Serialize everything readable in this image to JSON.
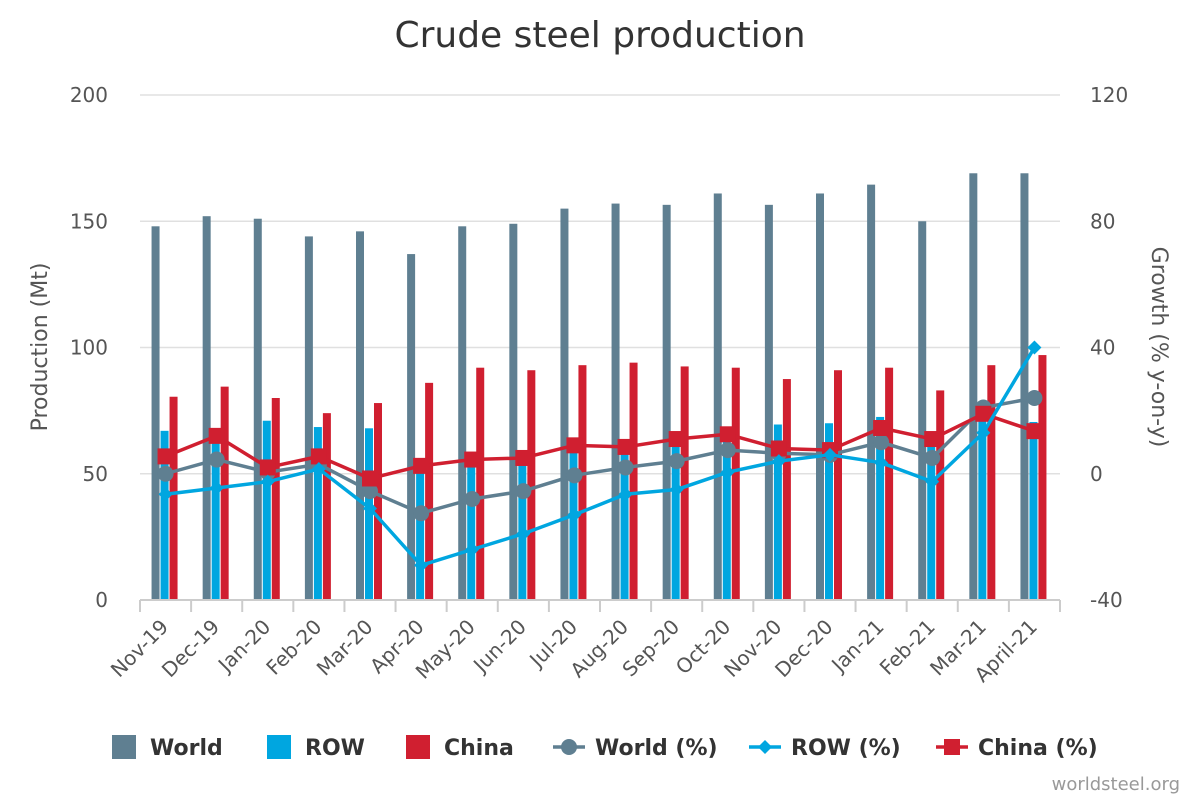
{
  "chart_data": {
    "type": "bar+line",
    "title": "Crude steel production",
    "categories": [
      "Nov-19",
      "Dec-19",
      "Jan-20",
      "Feb-20",
      "Mar-20",
      "Apr-20",
      "May-20",
      "Jun-20",
      "Jul-20",
      "Aug-20",
      "Sep-20",
      "Oct-20",
      "Nov-20",
      "Dec-20",
      "Jan-21",
      "Feb-21",
      "Mar-21",
      "April-21"
    ],
    "y_left": {
      "label": "Production (Mt)",
      "range": [
        0,
        200
      ],
      "ticks": [
        0,
        50,
        100,
        150,
        200
      ]
    },
    "y_right": {
      "label": "Growth (% y-on-y)",
      "range": [
        -40,
        120
      ],
      "ticks": [
        -40,
        0,
        40,
        80,
        120
      ]
    },
    "bar_series": [
      {
        "name": "World",
        "color": "#5f7f91",
        "values": [
          148,
          152,
          151,
          144,
          146,
          137,
          148,
          149,
          155,
          157,
          156.5,
          161,
          156.5,
          161,
          164.5,
          150,
          169,
          169
        ]
      },
      {
        "name": "ROW",
        "color": "#00a6e0",
        "values": [
          67,
          66,
          71,
          68.5,
          68,
          51,
          55,
          58,
          61,
          62,
          63,
          67,
          69.5,
          70,
          72.5,
          66,
          74,
          70.5
        ]
      },
      {
        "name": "China",
        "color": "#d01f30",
        "values": [
          80.5,
          84.5,
          80,
          74,
          78,
          86,
          92,
          91,
          93,
          94,
          92.5,
          92,
          87.5,
          91,
          92,
          83,
          93,
          97
        ]
      }
    ],
    "line_series": [
      {
        "name": "World (%)",
        "color": "#5f7f91",
        "marker": "circle",
        "values": [
          0,
          4.5,
          0.5,
          3,
          -5.5,
          -12.5,
          -8,
          -5.5,
          -0.5,
          2,
          4,
          7.5,
          6.5,
          6,
          10,
          5,
          21,
          24
        ]
      },
      {
        "name": "ROW (%)",
        "color": "#00a6e0",
        "marker": "diamond",
        "values": [
          -6.5,
          -4.5,
          -2.5,
          1.5,
          -11,
          -29,
          -24,
          -19,
          -13,
          -6.5,
          -5,
          0.5,
          4,
          6,
          3.5,
          -2.5,
          13,
          40
        ]
      },
      {
        "name": "China (%)",
        "color": "#d01f30",
        "marker": "square",
        "values": [
          5.5,
          12,
          2,
          5.5,
          -1.5,
          2.5,
          4.5,
          5,
          9,
          8.5,
          11,
          12.5,
          8,
          7.5,
          14.5,
          11,
          19,
          13.5
        ]
      }
    ],
    "legend_position": "bottom",
    "credit": "worldsteel.org"
  }
}
